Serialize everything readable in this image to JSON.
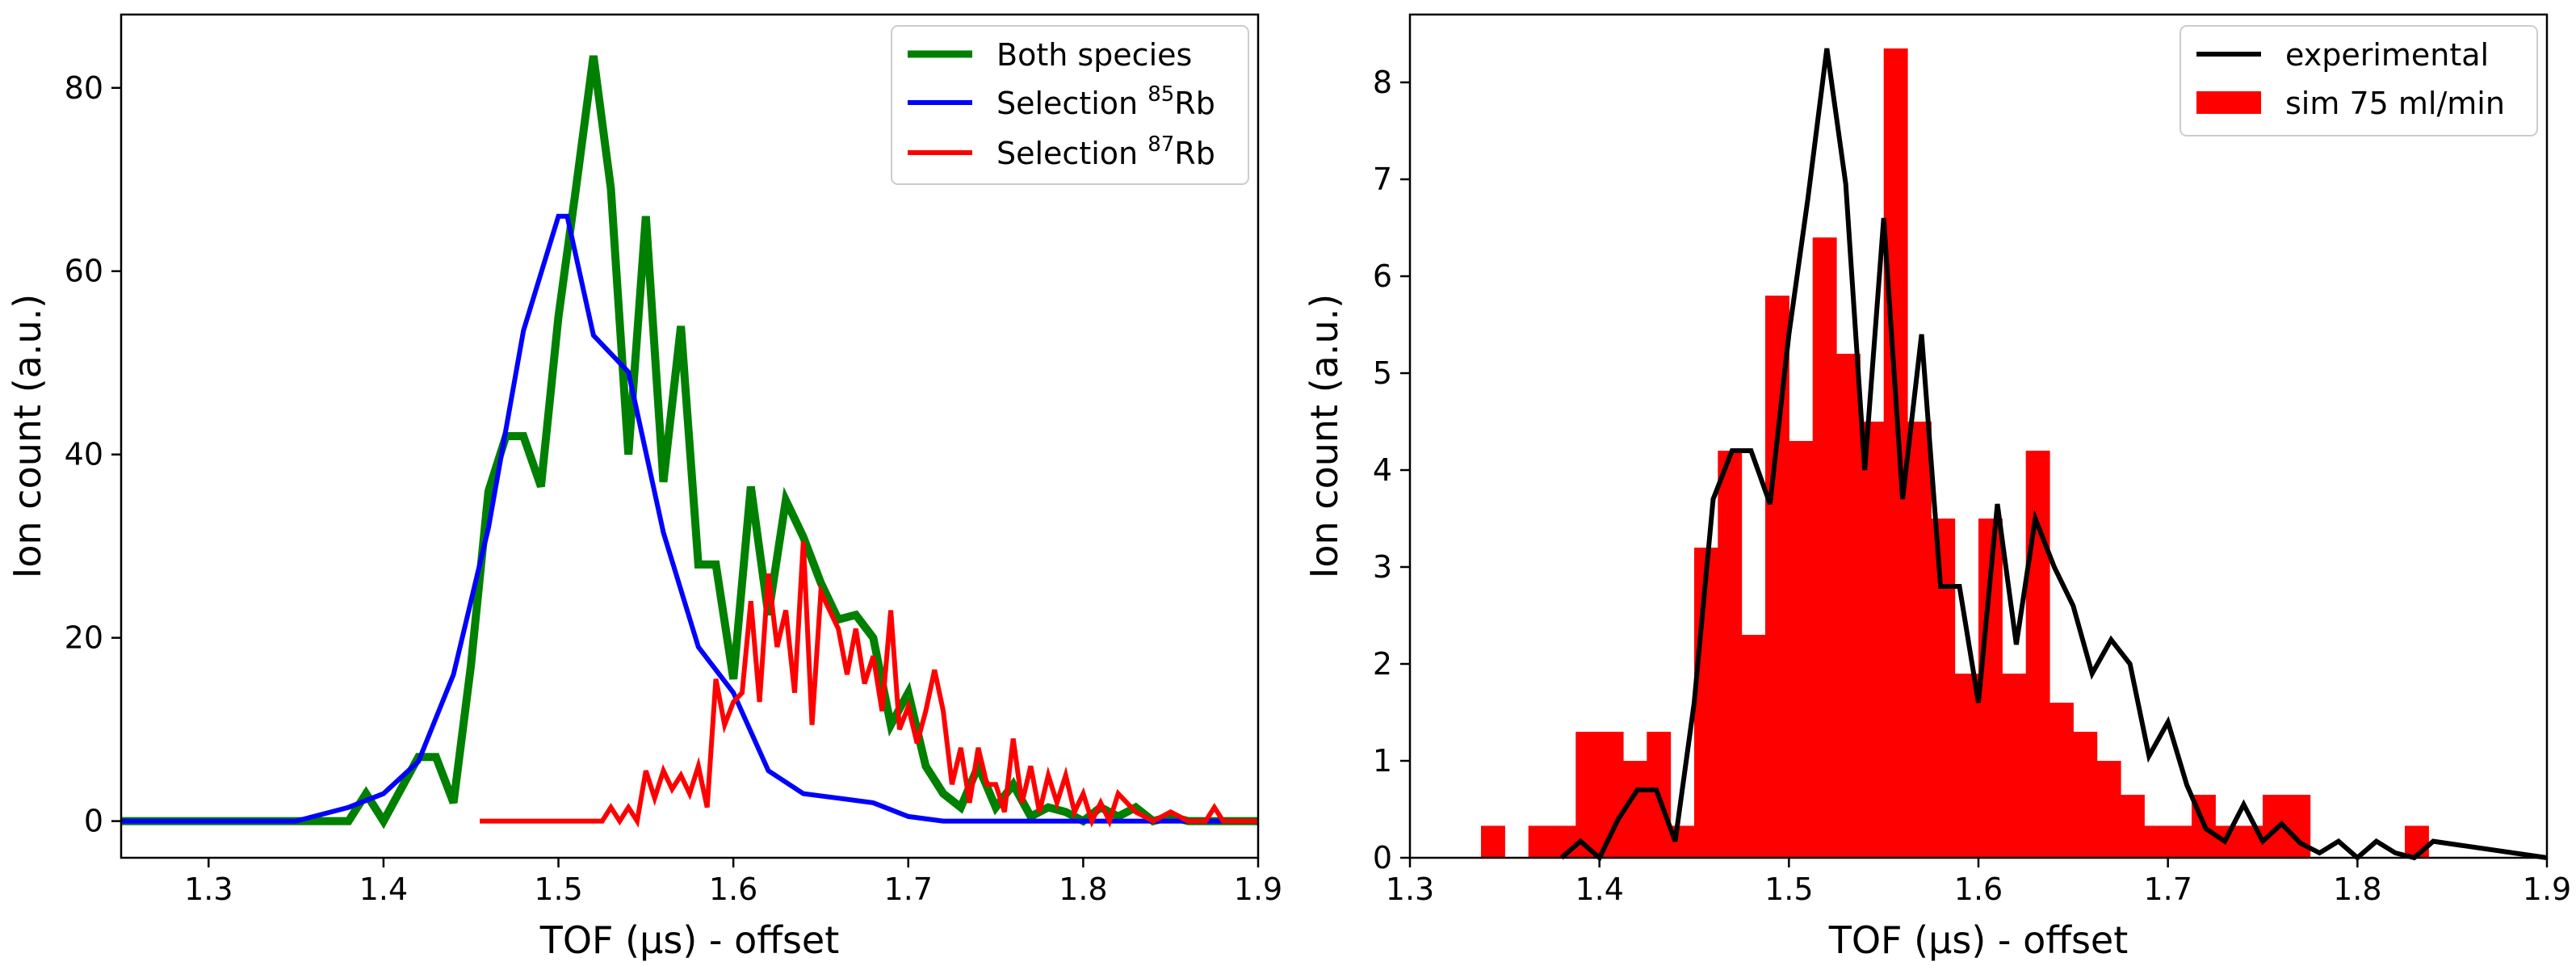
{
  "chart_data": [
    {
      "type": "line",
      "xlabel": "TOF (μs) - offset",
      "ylabel": "Ion count (a.u.)",
      "xlim": [
        1.25,
        1.9
      ],
      "ylim": [
        -4,
        88
      ],
      "xticks": [
        "1.3",
        "1.4",
        "1.5",
        "1.6",
        "1.7",
        "1.8",
        "1.9"
      ],
      "yticks": [
        "0",
        "20",
        "40",
        "60",
        "80"
      ],
      "grid": false,
      "legend_position": "top-right",
      "series": [
        {
          "name": "Both species",
          "legend_main": "Both species",
          "legend_sup": "",
          "legend_tail": "",
          "color": "#008000",
          "x": [
            1.25,
            1.38,
            1.39,
            1.4,
            1.42,
            1.43,
            1.44,
            1.45,
            1.46,
            1.47,
            1.48,
            1.49,
            1.5,
            1.51,
            1.52,
            1.53,
            1.54,
            1.55,
            1.56,
            1.57,
            1.58,
            1.59,
            1.6,
            1.61,
            1.62,
            1.63,
            1.64,
            1.65,
            1.66,
            1.67,
            1.68,
            1.69,
            1.7,
            1.71,
            1.72,
            1.73,
            1.74,
            1.75,
            1.76,
            1.77,
            1.78,
            1.79,
            1.8,
            1.81,
            1.82,
            1.83,
            1.84,
            1.85,
            1.86,
            1.87,
            1.88,
            1.89,
            1.9
          ],
          "y": [
            0,
            0,
            3,
            0,
            7,
            7,
            2,
            17,
            36,
            42,
            42,
            36.5,
            55,
            69,
            83.5,
            69,
            40,
            66,
            37,
            54,
            28,
            28,
            15.5,
            36.5,
            22.5,
            35,
            31,
            26,
            22,
            22.5,
            20,
            10.5,
            14,
            6,
            3,
            1.5,
            6,
            1.5,
            4,
            0.5,
            1.5,
            1,
            0,
            1.5,
            0.5,
            1.5,
            0,
            0.5,
            0,
            0,
            0,
            0,
            0
          ]
        },
        {
          "name": "Selection 85Rb",
          "legend_main": "Selection ",
          "legend_sup": "85",
          "legend_tail": "Rb",
          "color": "#0000ff",
          "x": [
            1.25,
            1.35,
            1.38,
            1.4,
            1.42,
            1.44,
            1.46,
            1.48,
            1.5,
            1.505,
            1.52,
            1.54,
            1.56,
            1.58,
            1.6,
            1.62,
            1.64,
            1.66,
            1.68,
            1.7,
            1.72,
            1.8,
            1.9
          ],
          "y": [
            0,
            0,
            1.5,
            3,
            6.5,
            16,
            32,
            53.5,
            66,
            66,
            53,
            49,
            31.5,
            19,
            14,
            5.5,
            3,
            2.5,
            2,
            0.5,
            0,
            0,
            0
          ]
        },
        {
          "name": "Selection 87Rb",
          "legend_main": "Selection ",
          "legend_sup": "87",
          "legend_tail": "Rb",
          "color": "#ff0000",
          "x": [
            1.455,
            1.525,
            1.53,
            1.535,
            1.54,
            1.545,
            1.55,
            1.555,
            1.56,
            1.565,
            1.57,
            1.575,
            1.58,
            1.585,
            1.59,
            1.595,
            1.6,
            1.605,
            1.61,
            1.615,
            1.62,
            1.625,
            1.63,
            1.635,
            1.64,
            1.645,
            1.65,
            1.655,
            1.66,
            1.665,
            1.67,
            1.675,
            1.68,
            1.685,
            1.69,
            1.695,
            1.7,
            1.705,
            1.71,
            1.715,
            1.72,
            1.725,
            1.73,
            1.735,
            1.74,
            1.745,
            1.75,
            1.755,
            1.76,
            1.765,
            1.77,
            1.775,
            1.78,
            1.785,
            1.79,
            1.795,
            1.8,
            1.805,
            1.81,
            1.815,
            1.82,
            1.83,
            1.84,
            1.85,
            1.86,
            1.87,
            1.875,
            1.88,
            1.9
          ],
          "y": [
            0,
            0,
            1.5,
            0,
            1.5,
            0,
            5.5,
            2.5,
            5.5,
            3.5,
            5,
            3,
            6,
            1.5,
            15.5,
            10.5,
            13,
            14,
            24,
            13,
            27,
            19,
            23,
            14,
            30.5,
            10.5,
            25,
            23,
            21,
            16,
            21,
            15,
            18,
            12,
            23,
            10,
            12.5,
            8.5,
            12,
            16.5,
            12,
            4,
            8,
            2,
            8,
            4,
            4,
            1,
            9,
            2,
            6,
            1,
            5,
            2,
            5,
            1,
            3,
            0,
            2,
            0,
            3,
            1,
            0,
            1,
            0,
            0,
            1.5,
            0,
            0
          ]
        }
      ]
    },
    {
      "type": "bar",
      "xlabel": "TOF (μs) - offset",
      "ylabel": "Ion count (a.u.)",
      "xlim": [
        1.3,
        1.9
      ],
      "ylim": [
        0,
        8.7
      ],
      "xticks": [
        "1.3",
        "1.4",
        "1.5",
        "1.6",
        "1.7",
        "1.8",
        "1.9"
      ],
      "yticks": [
        "0",
        "1",
        "2",
        "3",
        "4",
        "5",
        "6",
        "7",
        "8"
      ],
      "grid": false,
      "legend_position": "top-right",
      "histogram": {
        "name": "sim 75 ml/min",
        "color": "#ff0000",
        "bin_edges": [
          1.3375,
          1.35,
          1.3625,
          1.375,
          1.3875,
          1.4,
          1.4125,
          1.425,
          1.4375,
          1.45,
          1.4625,
          1.475,
          1.4875,
          1.5,
          1.5125,
          1.525,
          1.5375,
          1.55,
          1.5625,
          1.575,
          1.5875,
          1.6,
          1.6125,
          1.625,
          1.6375,
          1.65,
          1.6625,
          1.675,
          1.6875,
          1.7,
          1.7125,
          1.725,
          1.7375,
          1.75,
          1.7625,
          1.775,
          1.7875,
          1.8,
          1.8125,
          1.825,
          1.8375
        ],
        "counts": [
          0.33,
          0,
          0.33,
          0.33,
          1.3,
          1.3,
          1.0,
          1.3,
          0.33,
          3.2,
          4.2,
          2.3,
          5.8,
          4.3,
          6.4,
          5.2,
          4.5,
          8.35,
          4.5,
          3.5,
          1.9,
          3.5,
          1.9,
          4.2,
          1.6,
          1.3,
          1.0,
          0.65,
          0.33,
          0.33,
          0.65,
          0.33,
          0.33,
          0.65,
          0.65,
          0,
          0,
          0,
          0,
          0.33
        ]
      },
      "line": {
        "name": "experimental",
        "color": "#000000",
        "x": [
          1.38,
          1.39,
          1.4,
          1.41,
          1.42,
          1.43,
          1.44,
          1.45,
          1.46,
          1.47,
          1.48,
          1.49,
          1.5,
          1.51,
          1.52,
          1.53,
          1.54,
          1.55,
          1.56,
          1.57,
          1.58,
          1.59,
          1.6,
          1.61,
          1.62,
          1.63,
          1.64,
          1.65,
          1.66,
          1.67,
          1.68,
          1.69,
          1.7,
          1.71,
          1.72,
          1.73,
          1.74,
          1.75,
          1.76,
          1.77,
          1.78,
          1.79,
          1.8,
          1.81,
          1.82,
          1.83,
          1.84,
          1.9
        ],
        "y": [
          0,
          0.17,
          0,
          0.4,
          0.7,
          0.7,
          0.17,
          1.6,
          3.7,
          4.2,
          4.2,
          3.65,
          5.4,
          6.8,
          8.35,
          6.95,
          4.0,
          6.6,
          3.7,
          5.4,
          2.8,
          2.8,
          1.6,
          3.65,
          2.2,
          3.5,
          3.0,
          2.6,
          1.9,
          2.25,
          2.0,
          1.05,
          1.4,
          0.75,
          0.3,
          0.17,
          0.55,
          0.17,
          0.35,
          0.15,
          0.05,
          0.17,
          0,
          0.17,
          0.05,
          0,
          0.17,
          0
        ]
      }
    }
  ]
}
